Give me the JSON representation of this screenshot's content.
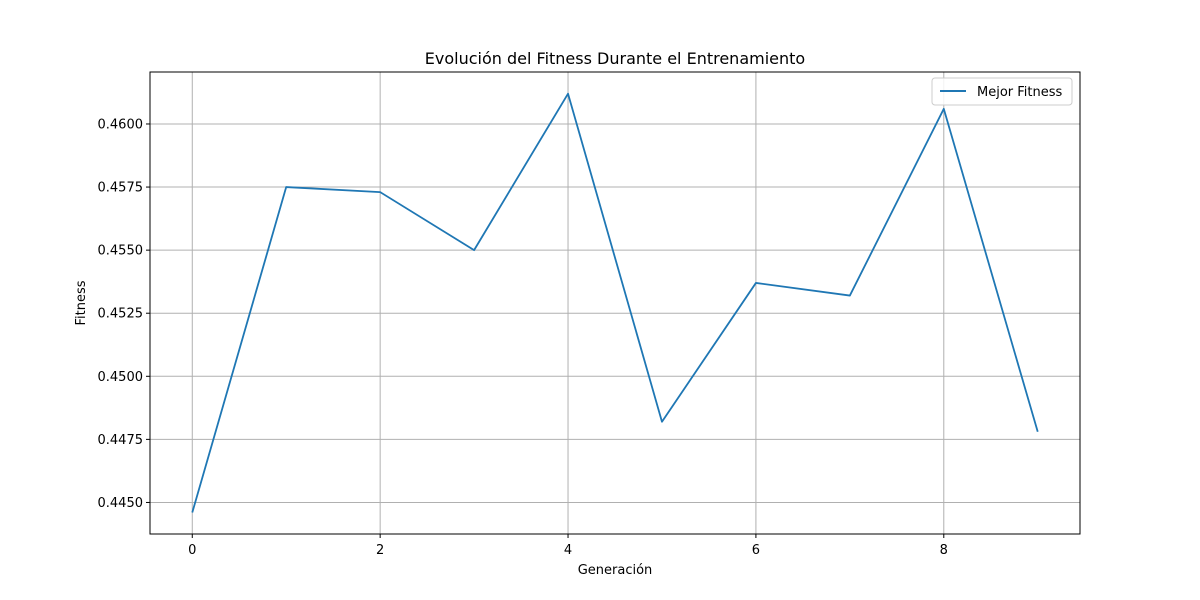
{
  "chart_data": {
    "type": "line",
    "title": "Evolución del Fitness Durante el Entrenamiento",
    "xlabel": "Generación",
    "ylabel": "Fitness",
    "x": [
      0,
      1,
      2,
      3,
      4,
      5,
      6,
      7,
      8,
      9
    ],
    "series": [
      {
        "name": "Mejor Fitness",
        "color": "#1f77b4",
        "values": [
          0.4446,
          0.4575,
          0.4573,
          0.455,
          0.4612,
          0.4482,
          0.4537,
          0.4532,
          0.4606,
          0.4478
        ]
      }
    ],
    "xlim": [
      -0.45,
      9.45
    ],
    "ylim": [
      0.44375,
      0.46206
    ],
    "xticks": [
      0,
      2,
      4,
      6,
      8
    ],
    "xtick_labels": [
      "0",
      "2",
      "4",
      "6",
      "8"
    ],
    "yticks": [
      0.445,
      0.4475,
      0.45,
      0.4525,
      0.455,
      0.4575,
      0.46
    ],
    "ytick_labels": [
      "0.4450",
      "0.4475",
      "0.4500",
      "0.4525",
      "0.4550",
      "0.4575",
      "0.4600"
    ],
    "grid": true,
    "legend_position": "top-right"
  }
}
